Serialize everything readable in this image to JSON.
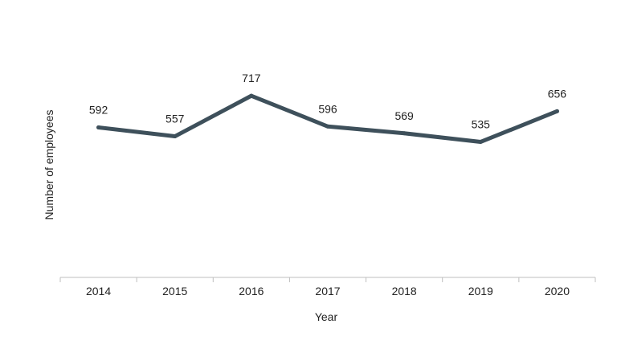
{
  "chart_data": {
    "type": "line",
    "title": "",
    "xlabel": "Year",
    "ylabel": "Number of employees",
    "categories": [
      "2014",
      "2015",
      "2016",
      "2017",
      "2018",
      "2019",
      "2020"
    ],
    "series": [
      {
        "values": [
          592,
          557,
          717,
          596,
          569,
          535,
          656
        ]
      }
    ],
    "ylim": [
      0,
      1000
    ],
    "grid": false,
    "legend": "none",
    "line_color": "#3e505b",
    "axis_color": "#bfbfbf",
    "text_color": "#222222"
  }
}
